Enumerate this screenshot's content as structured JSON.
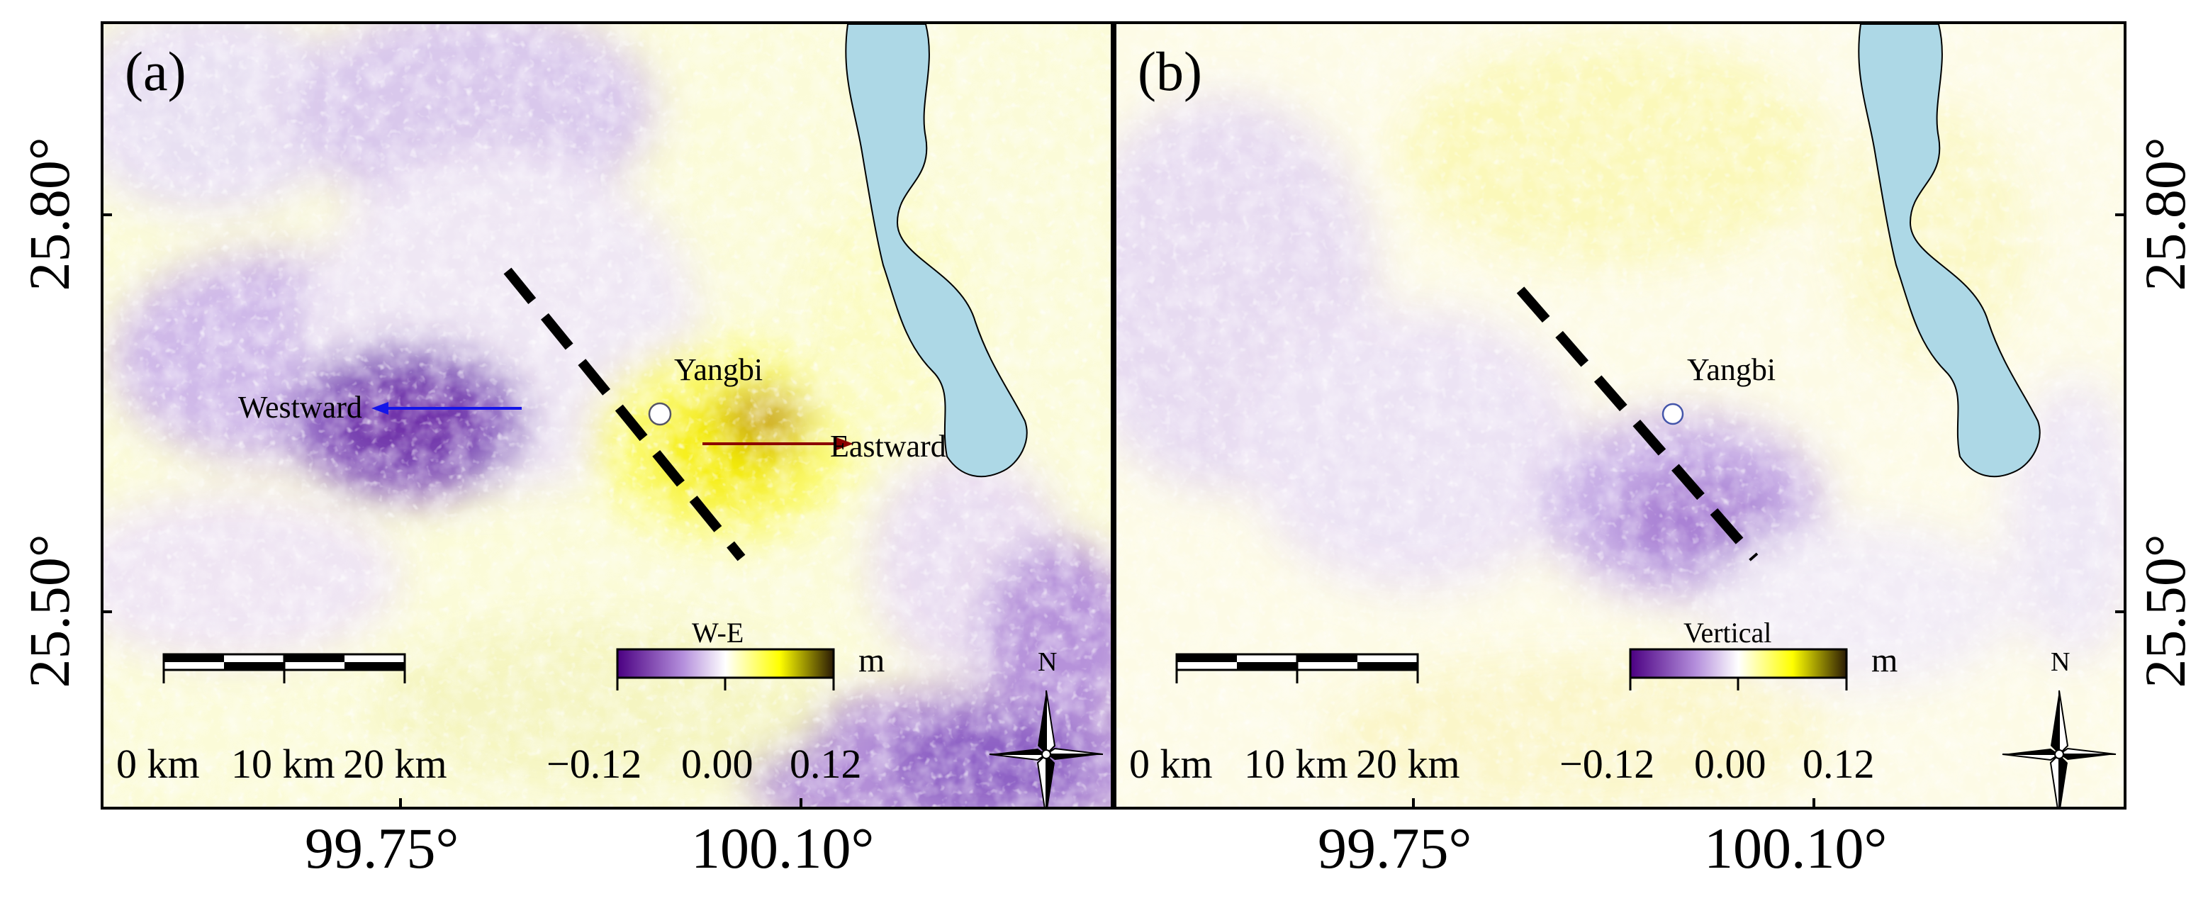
{
  "panels": [
    {
      "label": "(a)",
      "place": "Yangbi",
      "component": "W-E",
      "arrows": {
        "west": "Westward",
        "east": "Eastward"
      },
      "colorbar": {
        "title": "W-E",
        "unit": "m",
        "ticks": [
          "−0.12",
          "0.00",
          "0.12"
        ],
        "min": -0.12,
        "max": 0.12
      },
      "scalebar": [
        "0 km",
        "10 km",
        "20 km"
      ],
      "north": "N"
    },
    {
      "label": "(b)",
      "place": "Yangbi",
      "component": "Vertical",
      "colorbar": {
        "title": "Vertical",
        "unit": "m",
        "ticks": [
          "−0.12",
          "0.00",
          "0.12"
        ],
        "min": -0.12,
        "max": 0.12
      },
      "scalebar": [
        "0 km",
        "10 km",
        "20 km"
      ],
      "north": "N"
    }
  ],
  "axes": {
    "lat_ticks": [
      "25.80°",
      "25.50°"
    ],
    "lon_ticks": [
      "99.75°",
      "100.10°"
    ]
  },
  "colors": {
    "negative": "#5a0f8f",
    "positive": "#ffff00",
    "peak": "#3a2a10",
    "neutral": "#ffffff",
    "lake": "#add8e6",
    "westward_arrow": "#1515e8",
    "eastward_arrow": "#8b0000"
  }
}
